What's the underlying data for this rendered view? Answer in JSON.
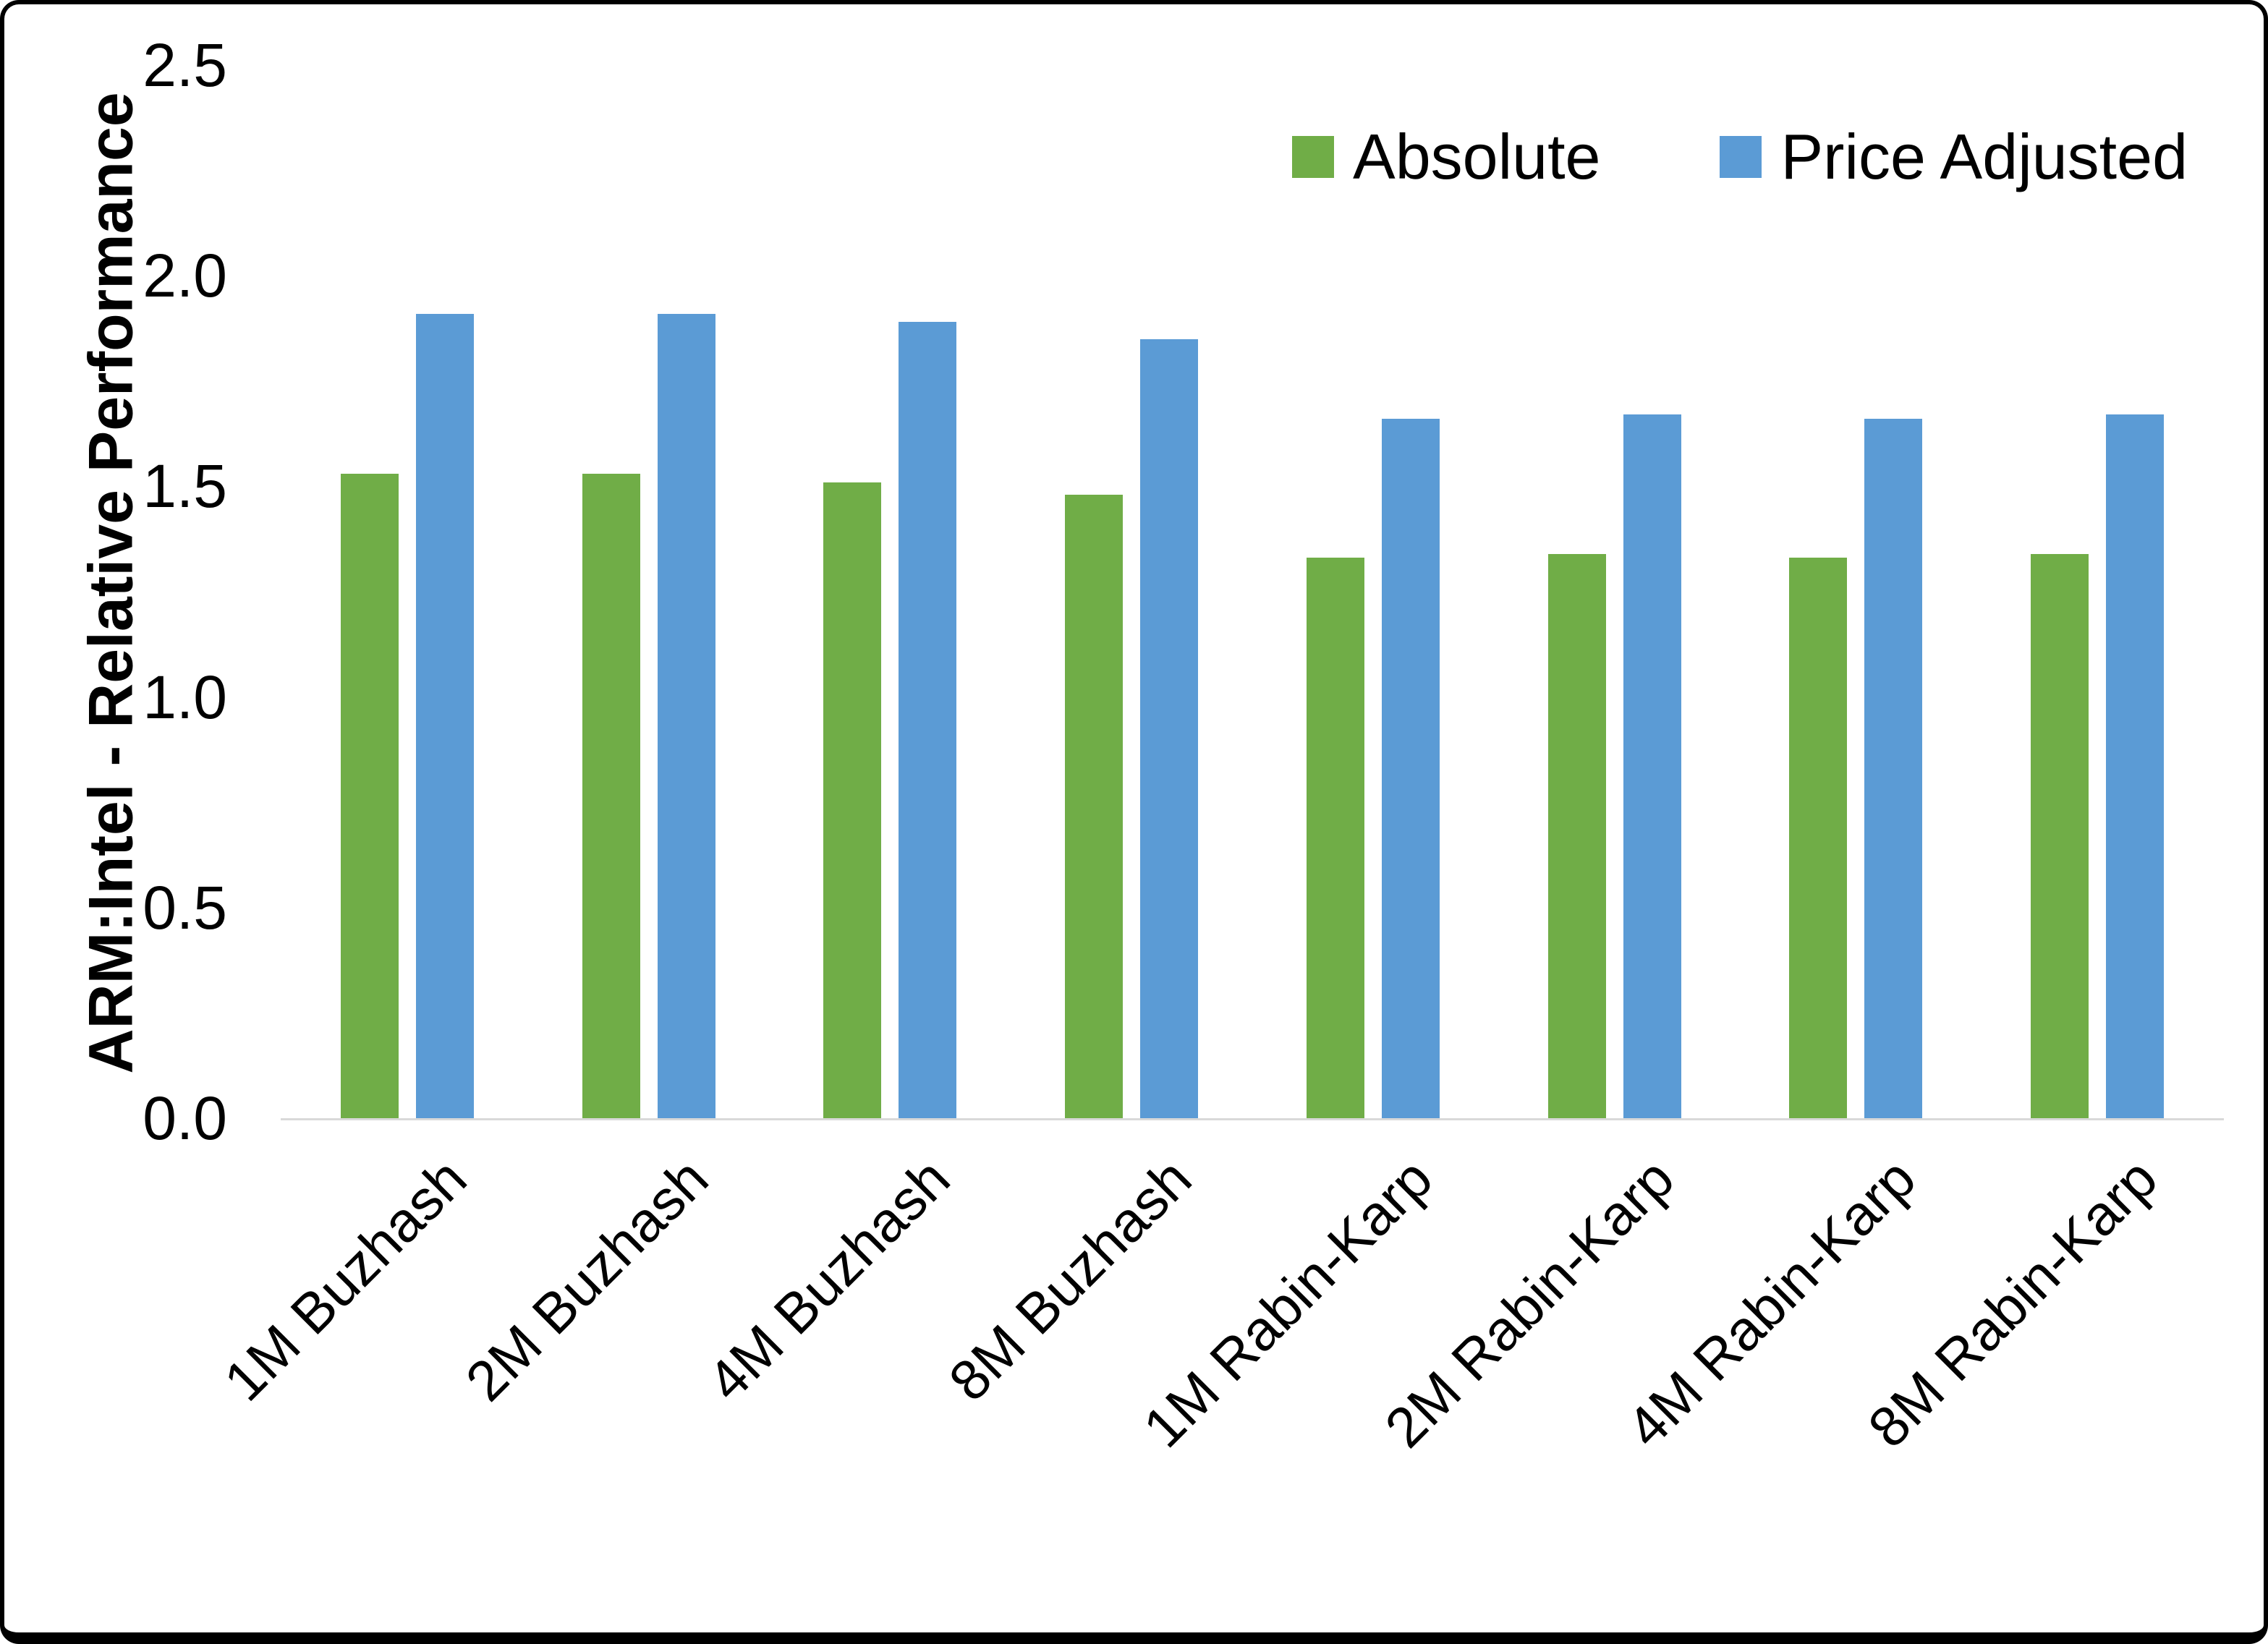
{
  "chart_data": {
    "type": "bar",
    "title": "",
    "xlabel": "",
    "ylabel": "ARM:Intel - Relative Performance",
    "ylim": [
      0,
      2.5
    ],
    "yticks": [
      "0.0",
      "0.5",
      "1.0",
      "1.5",
      "2.0",
      "2.5"
    ],
    "grid": false,
    "legend_position": "top-right",
    "categories": [
      "1M Buzhash",
      "2M Buzhash",
      "4M Buzhash",
      "8M Buzhash",
      "1M Rabin-Karp",
      "2M Rabin-Karp",
      "4M Rabin-Karp",
      "8M Rabin-Karp"
    ],
    "series": [
      {
        "name": "Absolute",
        "color": "#70AD47",
        "values": [
          1.53,
          1.53,
          1.51,
          1.48,
          1.33,
          1.34,
          1.33,
          1.34
        ]
      },
      {
        "name": "Price Adjusted",
        "color": "#5B9BD5",
        "values": [
          1.91,
          1.91,
          1.89,
          1.85,
          1.66,
          1.67,
          1.66,
          1.67
        ]
      }
    ]
  },
  "colors": {
    "background": "#ffffff",
    "border": "#000000",
    "axis_line": "#d9d9d9",
    "text": "#000000"
  }
}
